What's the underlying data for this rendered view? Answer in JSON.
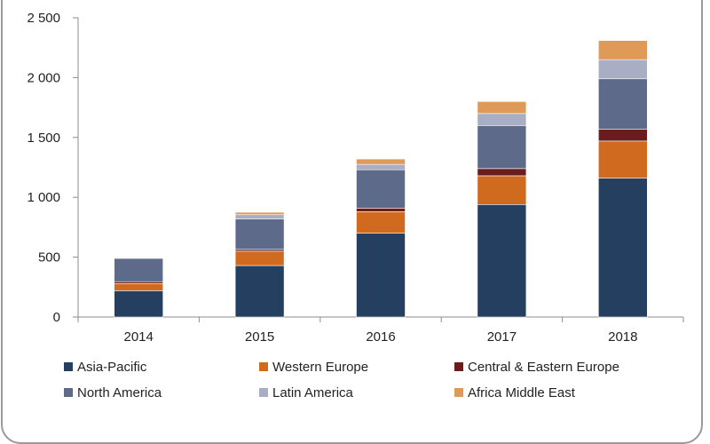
{
  "chart_data": {
    "type": "bar",
    "stacked": true,
    "categories": [
      "2014",
      "2015",
      "2016",
      "2017",
      "2018"
    ],
    "series": [
      {
        "name": "Asia-Pacific",
        "color": "#243f60",
        "values": [
          220,
          430,
          700,
          940,
          1160
        ]
      },
      {
        "name": "Western Europe",
        "color": "#d06a1e",
        "values": [
          60,
          120,
          180,
          240,
          310
        ]
      },
      {
        "name": "Central & Eastern Europe",
        "color": "#6b1c1c",
        "values": [
          15,
          15,
          30,
          60,
          100
        ]
      },
      {
        "name": "North America",
        "color": "#5e6a8a",
        "values": [
          195,
          255,
          320,
          360,
          420
        ]
      },
      {
        "name": "Latin America",
        "color": "#a8aec4",
        "values": [
          5,
          35,
          45,
          100,
          160
        ]
      },
      {
        "name": "Africa Middle East",
        "color": "#e09a58",
        "values": [
          5,
          20,
          45,
          100,
          160
        ]
      }
    ],
    "ylim": [
      0,
      2500
    ],
    "yticks": [
      0,
      500,
      1000,
      1500,
      2000,
      2500
    ],
    "ytick_labels": [
      "0",
      "500",
      "1 000",
      "1 500",
      "2 000",
      "2 500"
    ],
    "grid": false,
    "legend_position": "bottom"
  }
}
